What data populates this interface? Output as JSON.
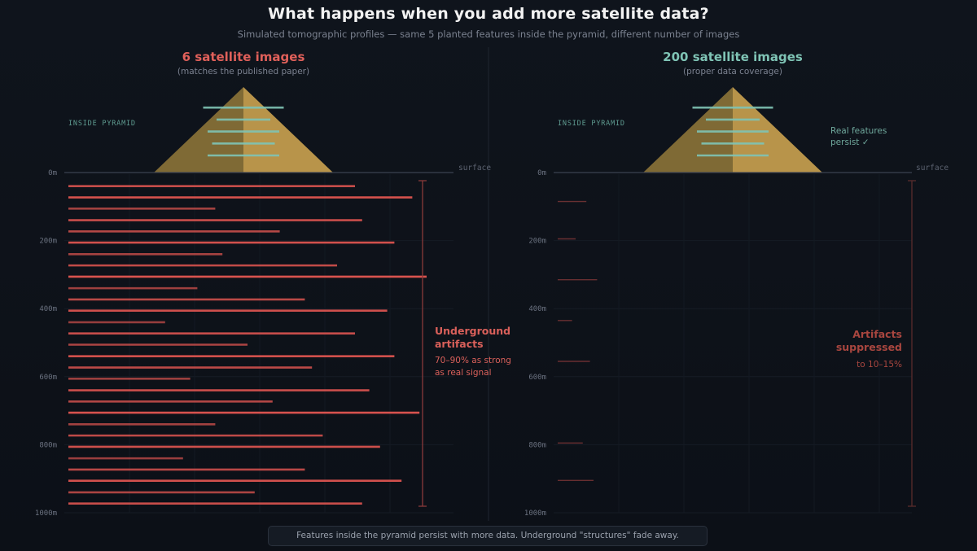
{
  "title": "What happens when you add more satellite data?",
  "subtitle": "Simulated tomographic profiles — same 5 planted features inside the pyramid, different number of images",
  "footer": "Features inside the pyramid persist with more data. Underground \"structures\" fade away.",
  "colors": {
    "artifact": "#d9534f",
    "feature": "#7fc4b5",
    "pyramid_light": "#c9a24a",
    "pyramid_dark": "#8c7236",
    "axis_text": "#6b7280",
    "bracket": "#8a3a3a"
  },
  "chart_data": [
    {
      "type": "bar",
      "title": "6 satellite images",
      "subtitle": "(matches the published paper)",
      "title_color": "#e0605a",
      "inside_label": "INSIDE PYRAMID",
      "surface_label": "surface",
      "y_ticks": [
        "0m",
        "200m",
        "400m",
        "600m",
        "800m",
        "1000m"
      ],
      "depth_range": [
        0,
        1000
      ],
      "annotation": {
        "heading_lines": [
          "Underground",
          "artifacts"
        ],
        "body_lines": [
          "70–90% as strong",
          "as real signal"
        ],
        "color": "#d9605a"
      },
      "features_side_note": [],
      "features": [
        {
          "x_start": 0.55,
          "x_end": 1.45,
          "height": 0.76
        },
        {
          "x_start": 0.7,
          "x_end": 1.3,
          "height": 0.62
        },
        {
          "x_start": 0.6,
          "x_end": 1.4,
          "height": 0.48
        },
        {
          "x_start": 0.65,
          "x_end": 1.35,
          "height": 0.34
        },
        {
          "x_start": 0.6,
          "x_end": 1.4,
          "height": 0.2
        }
      ],
      "artifacts": [
        {
          "depth": 40,
          "strength": 0.8
        },
        {
          "depth": 73,
          "strength": 0.96
        },
        {
          "depth": 106,
          "strength": 0.41
        },
        {
          "depth": 140,
          "strength": 0.82
        },
        {
          "depth": 173,
          "strength": 0.59
        },
        {
          "depth": 206,
          "strength": 0.91
        },
        {
          "depth": 240,
          "strength": 0.43
        },
        {
          "depth": 273,
          "strength": 0.75
        },
        {
          "depth": 306,
          "strength": 1.0
        },
        {
          "depth": 340,
          "strength": 0.36
        },
        {
          "depth": 373,
          "strength": 0.66
        },
        {
          "depth": 406,
          "strength": 0.89
        },
        {
          "depth": 440,
          "strength": 0.27
        },
        {
          "depth": 473,
          "strength": 0.8
        },
        {
          "depth": 506,
          "strength": 0.5
        },
        {
          "depth": 540,
          "strength": 0.91
        },
        {
          "depth": 573,
          "strength": 0.68
        },
        {
          "depth": 606,
          "strength": 0.34
        },
        {
          "depth": 640,
          "strength": 0.84
        },
        {
          "depth": 673,
          "strength": 0.57
        },
        {
          "depth": 706,
          "strength": 0.98
        },
        {
          "depth": 740,
          "strength": 0.41
        },
        {
          "depth": 773,
          "strength": 0.71
        },
        {
          "depth": 806,
          "strength": 0.87
        },
        {
          "depth": 840,
          "strength": 0.32
        },
        {
          "depth": 873,
          "strength": 0.66
        },
        {
          "depth": 906,
          "strength": 0.93
        },
        {
          "depth": 940,
          "strength": 0.52
        },
        {
          "depth": 973,
          "strength": 0.82
        }
      ]
    },
    {
      "type": "bar",
      "title": "200 satellite images",
      "subtitle": "(proper data coverage)",
      "title_color": "#7fc4b5",
      "inside_label": "INSIDE PYRAMID",
      "surface_label": "surface",
      "y_ticks": [
        "0m",
        "200m",
        "400m",
        "600m",
        "800m",
        "1000m"
      ],
      "depth_range": [
        0,
        1000
      ],
      "annotation": {
        "heading_lines": [
          "Artifacts",
          "suppressed"
        ],
        "body_lines": [
          "to 10–15%"
        ],
        "color": "#a8463f"
      },
      "features_side_note": [
        "Real features",
        "persist ✓"
      ],
      "features": [
        {
          "x_start": 0.55,
          "x_end": 1.45,
          "height": 0.76
        },
        {
          "x_start": 0.7,
          "x_end": 1.3,
          "height": 0.62
        },
        {
          "x_start": 0.6,
          "x_end": 1.4,
          "height": 0.48
        },
        {
          "x_start": 0.65,
          "x_end": 1.35,
          "height": 0.34
        },
        {
          "x_start": 0.6,
          "x_end": 1.4,
          "height": 0.2
        }
      ],
      "artifacts": [
        {
          "depth": 85,
          "strength": 0.08
        },
        {
          "depth": 195,
          "strength": 0.05
        },
        {
          "depth": 315,
          "strength": 0.11
        },
        {
          "depth": 435,
          "strength": 0.04
        },
        {
          "depth": 555,
          "strength": 0.09
        },
        {
          "depth": 795,
          "strength": 0.07
        },
        {
          "depth": 905,
          "strength": 0.1
        }
      ]
    }
  ]
}
